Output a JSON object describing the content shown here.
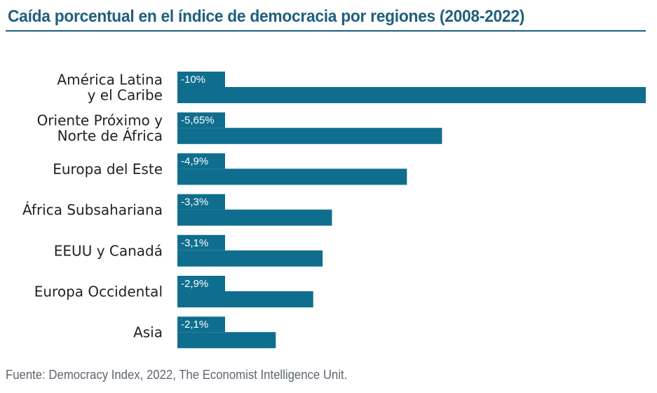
{
  "title": "Caída porcentual en el índice de democracia por regiones (2008-2022)",
  "source": "Fuente: Democracy Index, 2022, The Economist Intelligence Unit.",
  "colors": {
    "bar": "#0f6e8e",
    "title": "#1f5f7f",
    "text": "#222222",
    "source": "#5f6670"
  },
  "chart_data": {
    "type": "bar",
    "orientation": "horizontal",
    "title": "Caída porcentual en el índice de democracia por regiones (2008-2022)",
    "xlabel": "",
    "ylabel": "",
    "categories": [
      [
        "América Latina",
        "y el Caribe"
      ],
      [
        "Oriente Próximo y",
        "Norte de África"
      ],
      [
        "Europa del Este"
      ],
      [
        "África Subsahariana"
      ],
      [
        "EEUU y Canadá"
      ],
      [
        "Europa Occidental"
      ],
      [
        "Asia"
      ]
    ],
    "values": [
      -10,
      -5.65,
      -4.9,
      -3.3,
      -3.1,
      -2.9,
      -2.1
    ],
    "value_labels": [
      "-10%",
      "-5,65%",
      "-4,9%",
      "-3,3%",
      "-3,1%",
      "-2,9%",
      "-2,1%"
    ],
    "xlim": [
      0,
      -10
    ],
    "grid": false,
    "legend": "none"
  }
}
